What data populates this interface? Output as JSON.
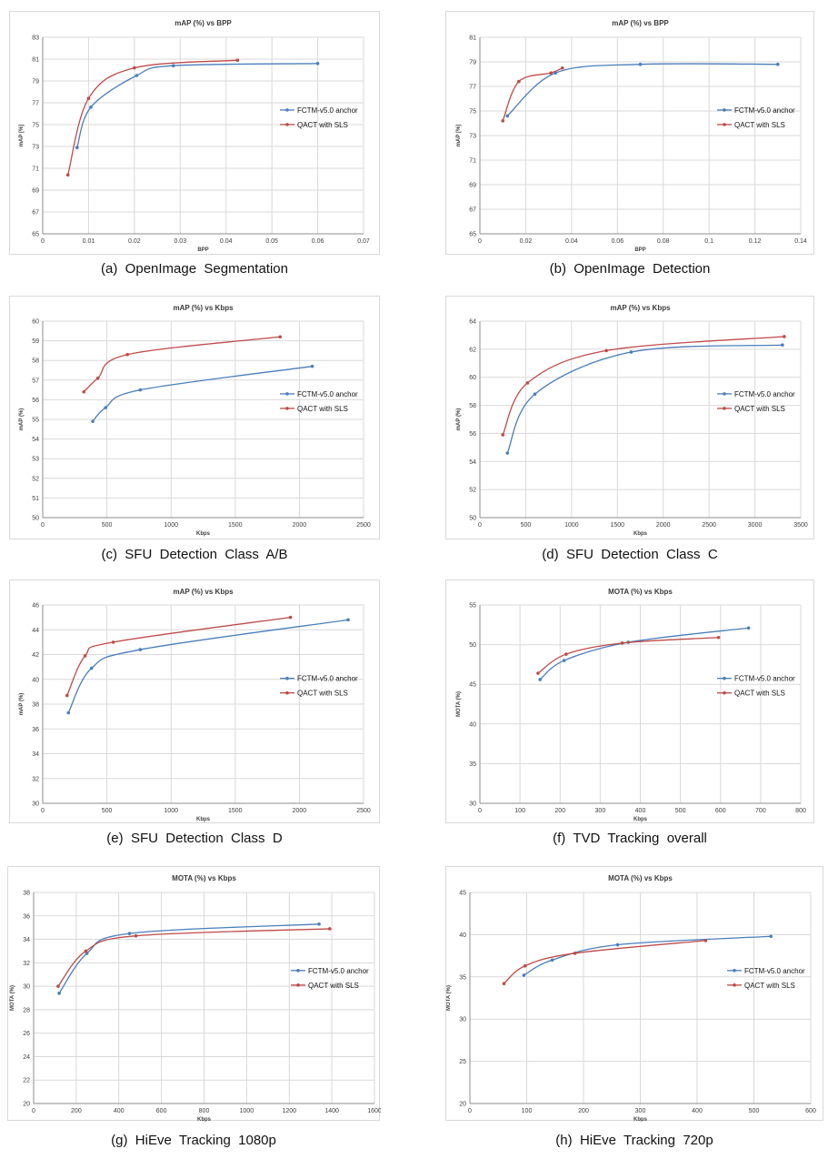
{
  "colors": {
    "fctm": "#4a7ebb",
    "qact": "#be4b48",
    "grid": "#d9d9d9",
    "axis": "#8c8c8c"
  },
  "chart_data": [
    {
      "type": "line",
      "caption": "(a)  OpenImage  Segmentation",
      "title": "mAP (%) vs BPP",
      "xlabel": "BPP",
      "ylabel": "mAP [%]",
      "xlim": [
        0,
        0.07
      ],
      "xstep": 0.01,
      "ylim": [
        65,
        83
      ],
      "ystep": 2,
      "xticks": [
        "0",
        "0.01",
        "0.02",
        "0.03",
        "0.04",
        "0.05",
        "0.06",
        "0.07"
      ],
      "legend": "right",
      "series": [
        {
          "name": "FCTM-v5.0 anchor",
          "key": "fctm",
          "points": [
            [
              0.0075,
              72.9
            ],
            [
              0.0105,
              76.6
            ],
            [
              0.0205,
              79.5
            ],
            [
              0.0285,
              80.4
            ],
            [
              0.06,
              80.6
            ]
          ]
        },
        {
          "name": "QACT with SLS",
          "key": "qact",
          "points": [
            [
              0.0055,
              70.4
            ],
            [
              0.01,
              77.4
            ],
            [
              0.02,
              80.2
            ],
            [
              0.0425,
              80.9
            ]
          ]
        }
      ]
    },
    {
      "type": "line",
      "caption": "(b)  OpenImage  Detection",
      "title": "mAP (%) vs BPP",
      "xlabel": "BPP",
      "ylabel": "mAP [%]",
      "xlim": [
        0,
        0.14
      ],
      "xstep": 0.02,
      "ylim": [
        65,
        81
      ],
      "ystep": 2,
      "xticks": [
        "0",
        "0.02",
        "0.04",
        "0.06",
        "0.08",
        "0.1",
        "0.12",
        "0.14"
      ],
      "legend": "right",
      "series": [
        {
          "name": "FCTM-v5.0 anchor",
          "key": "fctm",
          "points": [
            [
              0.012,
              74.6
            ],
            [
              0.033,
              78.1
            ],
            [
              0.07,
              78.8
            ],
            [
              0.13,
              78.8
            ]
          ]
        },
        {
          "name": "QACT with SLS",
          "key": "qact",
          "points": [
            [
              0.01,
              74.2
            ],
            [
              0.017,
              77.4
            ],
            [
              0.031,
              78.1
            ],
            [
              0.036,
              78.5
            ]
          ]
        }
      ]
    },
    {
      "type": "line",
      "caption": "(c)  SFU  Detection  Class  A/B",
      "title": "mAP (%) vs Kbps",
      "xlabel": "Kbps",
      "ylabel": "mAP (%)",
      "xlim": [
        0,
        2500
      ],
      "xstep": 500,
      "ylim": [
        50,
        60
      ],
      "ystep": 1,
      "xticks": [
        "0",
        "500",
        "1000",
        "1500",
        "2000",
        "2500"
      ],
      "legend": "right",
      "series": [
        {
          "name": "FCTM-v5.0 anchor",
          "key": "fctm",
          "points": [
            [
              390,
              54.9
            ],
            [
              490,
              55.6
            ],
            [
              760,
              56.5
            ],
            [
              2100,
              57.7
            ]
          ]
        },
        {
          "name": "QACT with SLS",
          "key": "qact",
          "points": [
            [
              320,
              56.4
            ],
            [
              430,
              57.1
            ],
            [
              660,
              58.3
            ],
            [
              1850,
              59.2
            ]
          ]
        }
      ]
    },
    {
      "type": "line",
      "caption": "(d)  SFU  Detection  Class  C",
      "title": "mAP (%) vs Kbps",
      "xlabel": "Kbps",
      "ylabel": "mAP (%)",
      "xlim": [
        0,
        3500
      ],
      "xstep": 500,
      "ylim": [
        50,
        64
      ],
      "ystep": 2,
      "xticks": [
        "0",
        "500",
        "1000",
        "1500",
        "2000",
        "2500",
        "3000",
        "3500"
      ],
      "legend": "right",
      "series": [
        {
          "name": "FCTM-v5.0 anchor",
          "key": "fctm",
          "points": [
            [
              300,
              54.6
            ],
            [
              600,
              58.8
            ],
            [
              1650,
              61.8
            ],
            [
              3300,
              62.3
            ]
          ]
        },
        {
          "name": "QACT with SLS",
          "key": "qact",
          "points": [
            [
              250,
              55.9
            ],
            [
              520,
              59.6
            ],
            [
              1380,
              61.9
            ],
            [
              3320,
              62.9
            ]
          ]
        }
      ]
    },
    {
      "type": "line",
      "caption": "(e)  SFU  Detection  Class  D",
      "title": "mAP (%) vs Kbps",
      "xlabel": "Kbps",
      "ylabel": "mAP (%)",
      "xlim": [
        0,
        2500
      ],
      "xstep": 500,
      "ylim": [
        30,
        46
      ],
      "ystep": 2,
      "xticks": [
        "0",
        "500",
        "1000",
        "1500",
        "2000",
        "2500"
      ],
      "legend": "right",
      "series": [
        {
          "name": "FCTM-v5.0 anchor",
          "key": "fctm",
          "points": [
            [
              200,
              37.3
            ],
            [
              380,
              40.9
            ],
            [
              760,
              42.4
            ],
            [
              2380,
              44.8
            ]
          ]
        },
        {
          "name": "QACT with SLS",
          "key": "qact",
          "points": [
            [
              190,
              38.7
            ],
            [
              330,
              41.9
            ],
            [
              550,
              43.0
            ],
            [
              1930,
              45.0
            ]
          ]
        }
      ]
    },
    {
      "type": "line",
      "caption": "(f)  TVD  Tracking  overall",
      "title": "MOTA (%) vs Kbps",
      "xlabel": "Kbps",
      "ylabel": "MOTA (%)",
      "xlim": [
        0,
        800
      ],
      "xstep": 100,
      "ylim": [
        30,
        55
      ],
      "ystep": 5,
      "xticks": [
        "0",
        "100",
        "200",
        "300",
        "400",
        "500",
        "600",
        "700",
        "800"
      ],
      "legend": "right",
      "series": [
        {
          "name": "FCTM-v5.0 anchor",
          "key": "fctm",
          "points": [
            [
              150,
              45.6
            ],
            [
              210,
              48.0
            ],
            [
              370,
              50.3
            ],
            [
              670,
              52.1
            ]
          ]
        },
        {
          "name": "QACT with SLS",
          "key": "qact",
          "points": [
            [
              145,
              46.4
            ],
            [
              215,
              48.8
            ],
            [
              355,
              50.2
            ],
            [
              595,
              50.9
            ]
          ]
        }
      ]
    },
    {
      "type": "line",
      "caption": "(g)  HiEve  Tracking  1080p",
      "title": "MOTA (%) vs Kbps",
      "xlabel": "Kbps",
      "ylabel": "MOTA (%)",
      "xlim": [
        0,
        1600
      ],
      "xstep": 200,
      "ylim": [
        20,
        38
      ],
      "ystep": 2,
      "xticks": [
        "0",
        "200",
        "400",
        "600",
        "800",
        "1000",
        "1200",
        "1400",
        "1600"
      ],
      "legend": "right",
      "series": [
        {
          "name": "FCTM-v5.0 anchor",
          "key": "fctm",
          "points": [
            [
              120,
              29.4
            ],
            [
              250,
              32.8
            ],
            [
              450,
              34.5
            ],
            [
              1340,
              35.3
            ]
          ]
        },
        {
          "name": "QACT with SLS",
          "key": "qact",
          "points": [
            [
              115,
              30.0
            ],
            [
              245,
              33.0
            ],
            [
              480,
              34.3
            ],
            [
              1390,
              34.9
            ]
          ]
        }
      ]
    },
    {
      "type": "line",
      "caption": "(h)  HiEve  Tracking  720p",
      "title": "MOTA (%) vs Kbps",
      "xlabel": "Kbps",
      "ylabel": "MOTA (%)",
      "xlim": [
        0,
        600
      ],
      "xstep": 100,
      "ylim": [
        20,
        45
      ],
      "ystep": 5,
      "xticks": [
        "0",
        "100",
        "200",
        "300",
        "400",
        "500",
        "600"
      ],
      "legend": "right",
      "series": [
        {
          "name": "FCTM-v5.0 anchor",
          "key": "fctm",
          "points": [
            [
              95,
              35.2
            ],
            [
              145,
              37.0
            ],
            [
              260,
              38.8
            ],
            [
              530,
              39.8
            ]
          ]
        },
        {
          "name": "QACT with SLS",
          "key": "qact",
          "points": [
            [
              60,
              34.2
            ],
            [
              97,
              36.3
            ],
            [
              185,
              37.8
            ],
            [
              415,
              39.3
            ]
          ]
        }
      ]
    }
  ]
}
